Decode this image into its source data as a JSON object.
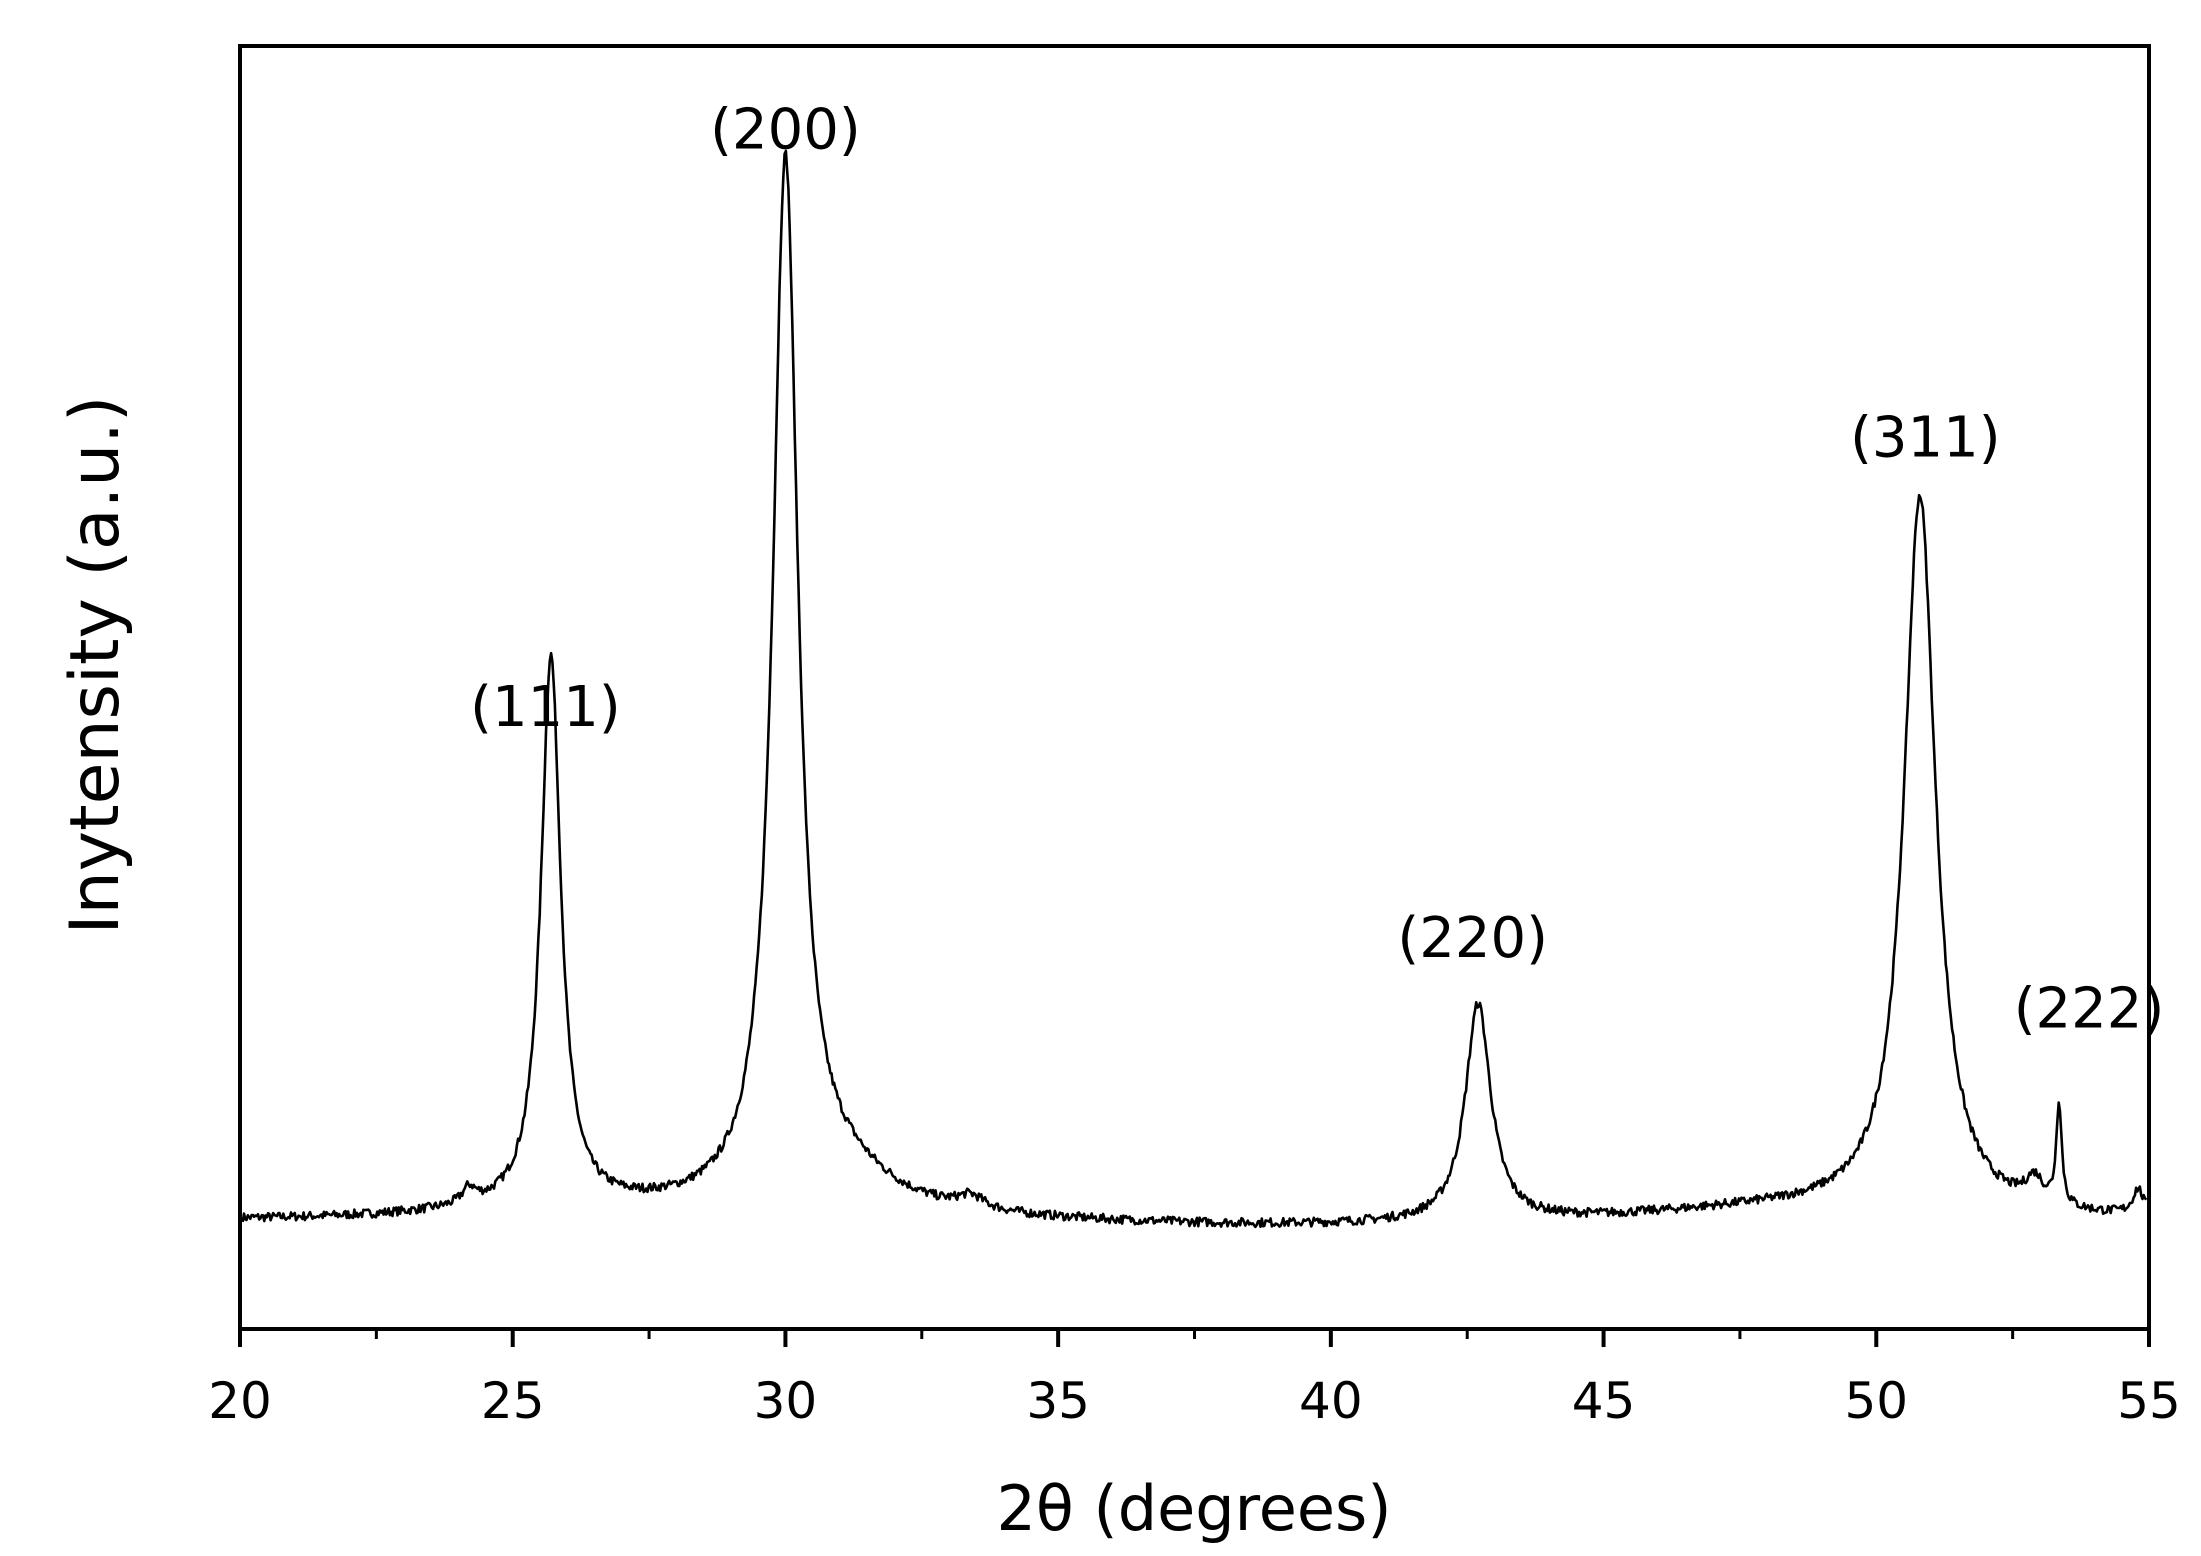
{
  "chart_data": {
    "type": "line",
    "title": "",
    "xlabel": "2θ (degrees)",
    "ylabel": "Inytensity (a.u.)",
    "xlim": [
      20,
      55
    ],
    "ylim": [
      0,
      100
    ],
    "x_ticks": [
      20,
      25,
      30,
      35,
      40,
      45,
      50,
      55
    ],
    "x_tick_labels": [
      "20",
      "25",
      "30",
      "35",
      "40",
      "45",
      "50",
      "55"
    ],
    "y_ticks_shown": false,
    "grid": false,
    "legend": "none",
    "line_color": "#000000",
    "baseline": 8.5,
    "series": [
      {
        "peaks": [
          {
            "x": 24.2,
            "height": 1.2,
            "width": 0.15
          },
          {
            "x": 25.7,
            "height": 43,
            "width": 0.22
          },
          {
            "x": 30.0,
            "height": 81,
            "width": 0.28
          },
          {
            "x": 31.0,
            "height": 3,
            "width": 1.2
          },
          {
            "x": 33.4,
            "height": 1.0,
            "width": 0.3
          },
          {
            "x": 42.7,
            "height": 17,
            "width": 0.28
          },
          {
            "x": 50.8,
            "height": 56,
            "width": 0.35
          },
          {
            "x": 52.9,
            "height": 2.0,
            "width": 0.2
          },
          {
            "x": 53.35,
            "height": 8,
            "width": 0.06
          },
          {
            "x": 54.8,
            "height": 2.0,
            "width": 0.12
          }
        ]
      }
    ],
    "annotations": [
      {
        "text": "(111)",
        "x": 25.6,
        "y": 47
      },
      {
        "text": "(200)",
        "x": 30.0,
        "y": 92
      },
      {
        "text": "(220)",
        "x": 42.6,
        "y": 29
      },
      {
        "text": "(311)",
        "x": 50.9,
        "y": 68
      },
      {
        "text": "(222)",
        "x": 53.9,
        "y": 23.5
      }
    ]
  }
}
